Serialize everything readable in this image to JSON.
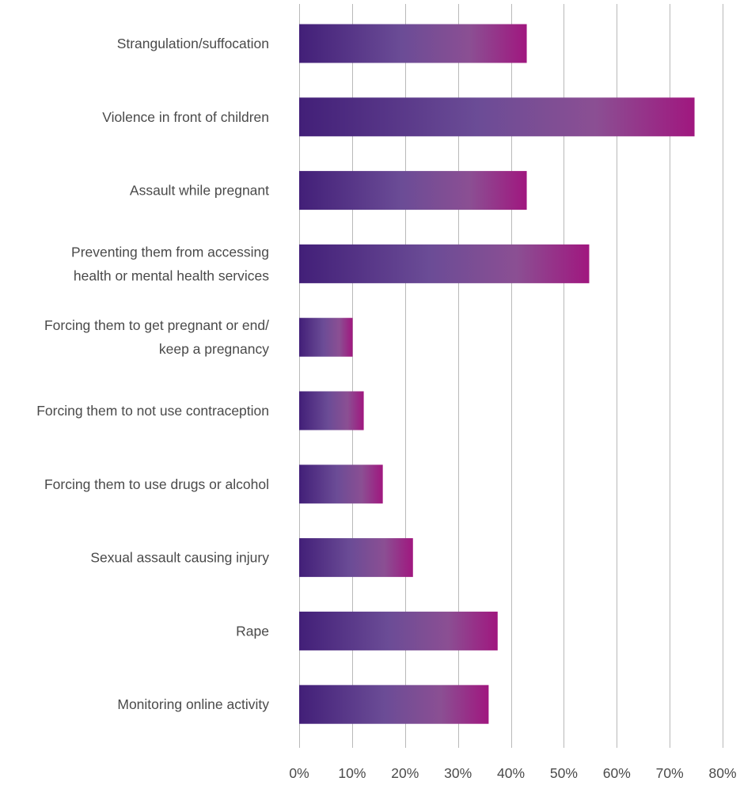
{
  "chart_data": {
    "type": "bar",
    "orientation": "horizontal",
    "categories": [
      "Strangulation/suffocation",
      "Violence in front of children",
      "Assault while pregnant",
      "Preventing them from accessing health or mental health services",
      "Forcing them to get pregnant or end/ keep a pregnancy",
      "Forcing them to not use contraception",
      "Forcing them to use drugs or alcohol",
      "Sexual assault causing injury",
      "Rape",
      "Monitoring online activity"
    ],
    "category_lines": [
      [
        "Strangulation/suffocation"
      ],
      [
        "Violence in front of children"
      ],
      [
        "Assault while pregnant"
      ],
      [
        "Preventing them from accessing",
        "health or mental health services"
      ],
      [
        "Forcing them to get pregnant or end/",
        "keep a pregnancy"
      ],
      [
        "Forcing them to not use contraception"
      ],
      [
        "Forcing them to use drugs or alcohol"
      ],
      [
        "Sexual assault causing injury"
      ],
      [
        "Rape"
      ],
      [
        "Monitoring online activity"
      ]
    ],
    "values": [
      43,
      74.7,
      43,
      54.8,
      10.1,
      12.2,
      15.8,
      21.5,
      37.5,
      35.8
    ],
    "xlim": [
      0,
      80
    ],
    "ticks": [
      0,
      10,
      20,
      30,
      40,
      50,
      60,
      70,
      80
    ],
    "tick_labels": [
      "0%",
      "10%",
      "20%",
      "30%",
      "40%",
      "50%",
      "60%",
      "70%",
      "80%"
    ],
    "grid": true,
    "bar_gradient": [
      "#421f78",
      "#6b4c96",
      "#8b4f93",
      "#a0177f"
    ],
    "gridline_color": "#b9b9b9",
    "text_color": "#4a4a4a"
  }
}
